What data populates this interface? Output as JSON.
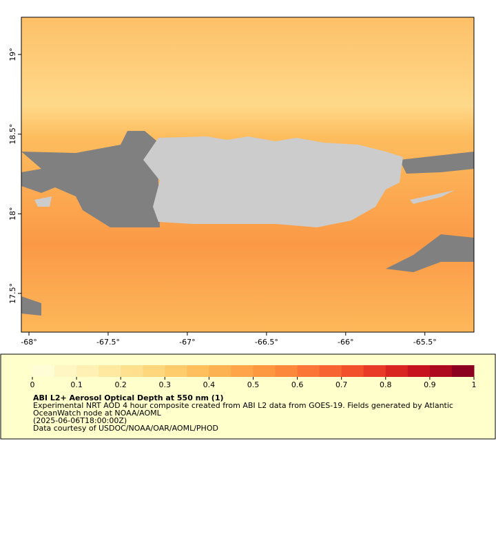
{
  "chart_data": {
    "type": "map",
    "xlim": [
      -68.048,
      -65.19
    ],
    "ylim": [
      17.257,
      19.234
    ],
    "xticks": [
      {
        "value": -68,
        "label": "-68°"
      },
      {
        "value": -67.5,
        "label": "-67.5°"
      },
      {
        "value": -67,
        "label": "-67°"
      },
      {
        "value": -66.5,
        "label": "-66.5°"
      },
      {
        "value": -66,
        "label": "-66°"
      },
      {
        "value": -65.5,
        "label": "-65.5°"
      }
    ],
    "yticks": [
      {
        "value": 17.5,
        "label": "17.5°"
      },
      {
        "value": 18,
        "label": "18°"
      },
      {
        "value": 18.5,
        "label": "18.5°"
      },
      {
        "value": 19,
        "label": "19°"
      }
    ],
    "colorbar": {
      "range": [
        0,
        1
      ],
      "ticks": [
        0,
        0.1,
        0.2,
        0.3,
        0.4,
        0.5,
        0.6,
        0.7,
        0.8,
        0.9,
        1
      ],
      "colors": [
        "#fffcd6",
        "#fff6c4",
        "#fff0b3",
        "#ffe8a0",
        "#fee08e",
        "#fed77d",
        "#fecc6b",
        "#febf5c",
        "#fdb251",
        "#fda548",
        "#fd9841",
        "#fc883b",
        "#fb7636",
        "#f86431",
        "#f24f2b",
        "#e83a26",
        "#d92522",
        "#c7131f",
        "#ad091f",
        "#8c0020"
      ]
    },
    "title": "ABI L2+ Aerosol Optical Depth at 550 nm (1)",
    "caption": [
      "Experimental NRT AOD 4 hour composite created from ABI L2 data from GOES-19. Fields generated by Atlantic",
      "OceanWatch node at NOAA/AOML",
      "(2025-06-06T18:00:00Z)",
      "Data courtesy of USDOC/NOAA/OAR/AOML/PHOD"
    ]
  }
}
